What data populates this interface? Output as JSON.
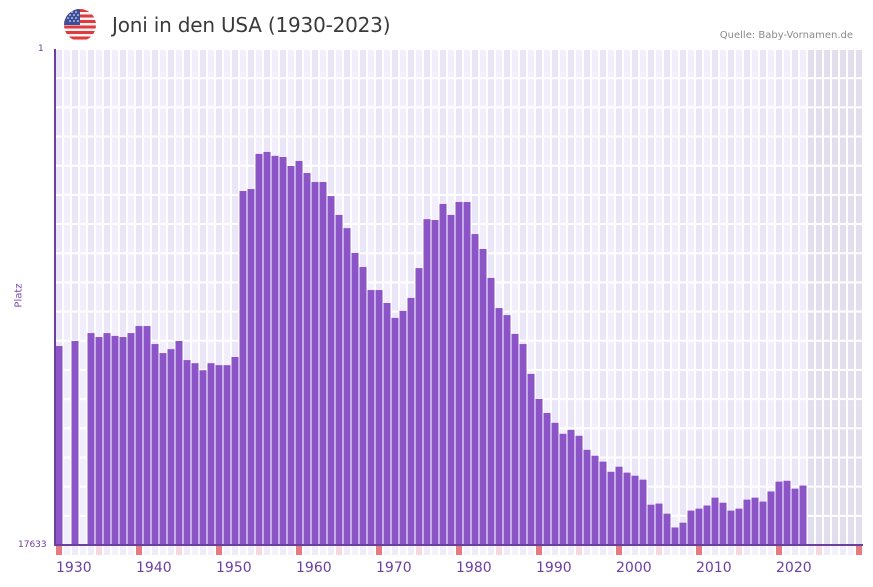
{
  "header": {
    "flag_icon": "us-flag-icon",
    "title": "Joni in den USA (1930-2023)",
    "source": "Quelle: Baby-Vornamen.de"
  },
  "axis": {
    "y_top_label": "1",
    "y_bottom_label": "17633",
    "y_title": "Platz",
    "x_ticks": [
      "1930",
      "1940",
      "1950",
      "1960",
      "1970",
      "1980",
      "1990",
      "2000",
      "2010",
      "2020"
    ]
  },
  "colors": {
    "bar": "#8c55c7",
    "axis": "#6a3fa0",
    "grid_bg_a": "#f2eefb",
    "grid_bg_b": "#ebe6f7",
    "future_bg": "#e2deee",
    "decade_marker": "#e57a80",
    "half_decade_marker": "#f5d8e0"
  },
  "chart_data": {
    "type": "bar",
    "title": "Joni in den USA (1930-2023)",
    "subtitle": "Quelle: Baby-Vornamen.de",
    "xlabel": "",
    "ylabel": "Platz",
    "y_inverted": true,
    "ylim": [
      1,
      17633
    ],
    "xlim": [
      1930,
      2030
    ],
    "grid": true,
    "legend": null,
    "categories": [
      1930,
      1931,
      1932,
      1933,
      1934,
      1935,
      1936,
      1937,
      1938,
      1939,
      1940,
      1941,
      1942,
      1943,
      1944,
      1945,
      1946,
      1947,
      1948,
      1949,
      1950,
      1951,
      1952,
      1953,
      1954,
      1955,
      1956,
      1957,
      1958,
      1959,
      1960,
      1961,
      1962,
      1963,
      1964,
      1965,
      1966,
      1967,
      1968,
      1969,
      1970,
      1971,
      1972,
      1973,
      1974,
      1975,
      1976,
      1977,
      1978,
      1979,
      1980,
      1981,
      1982,
      1983,
      1984,
      1985,
      1986,
      1987,
      1988,
      1989,
      1990,
      1991,
      1992,
      1993,
      1994,
      1995,
      1996,
      1997,
      1998,
      1999,
      2000,
      2001,
      2002,
      2003,
      2004,
      2005,
      2006,
      2007,
      2008,
      2009,
      2010,
      2011,
      2012,
      2013,
      2014,
      2015,
      2016,
      2017,
      2018,
      2019,
      2020,
      2021,
      2022,
      2023
    ],
    "series": [
      {
        "name": "Platz",
        "values": [
          10560,
          null,
          10380,
          null,
          10100,
          10240,
          10100,
          10200,
          10240,
          10100,
          9850,
          9850,
          10490,
          10810,
          10670,
          10380,
          11060,
          11170,
          11420,
          11170,
          11240,
          11240,
          10950,
          5050,
          4980,
          3730,
          3660,
          3800,
          3840,
          4160,
          3980,
          4410,
          4730,
          4730,
          5230,
          5900,
          6370,
          7250,
          7750,
          8570,
          8570,
          9030,
          9560,
          9310,
          8850,
          7790,
          6050,
          6080,
          5510,
          5900,
          5440,
          5440,
          6580,
          7110,
          8140,
          9210,
          9460,
          10130,
          10490,
          11550,
          12440,
          12940,
          13290,
          13680,
          13540,
          13750,
          14250,
          14460,
          14670,
          15030,
          14850,
          15060,
          15170,
          15310,
          16200,
          16160,
          16520,
          17010,
          16840,
          16410,
          16340,
          16230,
          15950,
          16130,
          16410,
          16340,
          16020,
          15950,
          16090,
          15730,
          15380,
          15350,
          15630,
          15520
        ]
      }
    ],
    "future_shaded_from": 2024,
    "bottom_markers": {
      "decade_years": [
        1930,
        1940,
        1950,
        1960,
        1970,
        1980,
        1990,
        2000,
        2010,
        2020,
        2030
      ],
      "half_decade_years": [
        1935,
        1945,
        1955,
        1965,
        1975,
        1985,
        1995,
        2005,
        2015,
        2025
      ]
    }
  }
}
